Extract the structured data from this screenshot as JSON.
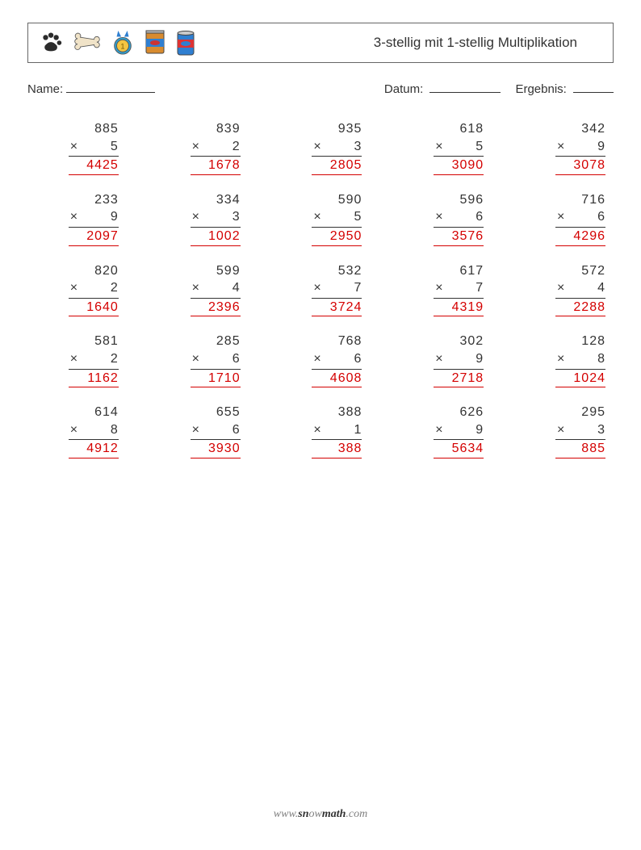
{
  "header": {
    "title": "3-stellig mit 1-stellig Multiplikation",
    "icons": [
      {
        "name": "paw-icon",
        "fill": "#2b2b2b"
      },
      {
        "name": "bone-icon",
        "fill": "#e9d7b8",
        "stroke": "#444"
      },
      {
        "name": "medal-icon",
        "ribbon": "#2f7fd1",
        "disc": "#f3c542",
        "stroke": "#555"
      },
      {
        "name": "fish-can-flat-icon",
        "body": "#d88b2f",
        "label": "#2f7fd1"
      },
      {
        "name": "fish-can-tall-icon",
        "body": "#2f7fd1",
        "label": "#c33"
      }
    ]
  },
  "info": {
    "name_label": "Name:",
    "date_label": "Datum:",
    "result_label": "Ergebnis:"
  },
  "op_symbol": "×",
  "answer_color": "#d40000",
  "text_color": "#333333",
  "grid_cols": 5,
  "problems": [
    {
      "a": 885,
      "b": 5,
      "ans": 4425
    },
    {
      "a": 839,
      "b": 2,
      "ans": 1678
    },
    {
      "a": 935,
      "b": 3,
      "ans": 2805
    },
    {
      "a": 618,
      "b": 5,
      "ans": 3090
    },
    {
      "a": 342,
      "b": 9,
      "ans": 3078
    },
    {
      "a": 233,
      "b": 9,
      "ans": 2097
    },
    {
      "a": 334,
      "b": 3,
      "ans": 1002
    },
    {
      "a": 590,
      "b": 5,
      "ans": 2950
    },
    {
      "a": 596,
      "b": 6,
      "ans": 3576
    },
    {
      "a": 716,
      "b": 6,
      "ans": 4296
    },
    {
      "a": 820,
      "b": 2,
      "ans": 1640
    },
    {
      "a": 599,
      "b": 4,
      "ans": 2396
    },
    {
      "a": 532,
      "b": 7,
      "ans": 3724
    },
    {
      "a": 617,
      "b": 7,
      "ans": 4319
    },
    {
      "a": 572,
      "b": 4,
      "ans": 2288
    },
    {
      "a": 581,
      "b": 2,
      "ans": 1162
    },
    {
      "a": 285,
      "b": 6,
      "ans": 1710
    },
    {
      "a": 768,
      "b": 6,
      "ans": 4608
    },
    {
      "a": 302,
      "b": 9,
      "ans": 2718
    },
    {
      "a": 128,
      "b": 8,
      "ans": 1024
    },
    {
      "a": 614,
      "b": 8,
      "ans": 4912
    },
    {
      "a": 655,
      "b": 6,
      "ans": 3930
    },
    {
      "a": 388,
      "b": 1,
      "ans": 388
    },
    {
      "a": 626,
      "b": 9,
      "ans": 5634
    },
    {
      "a": 295,
      "b": 3,
      "ans": 885
    }
  ],
  "footer": {
    "prefix": "www.",
    "mid1": "sn",
    "mid2": "ow",
    "mid3": "math",
    "suffix": ".com"
  }
}
